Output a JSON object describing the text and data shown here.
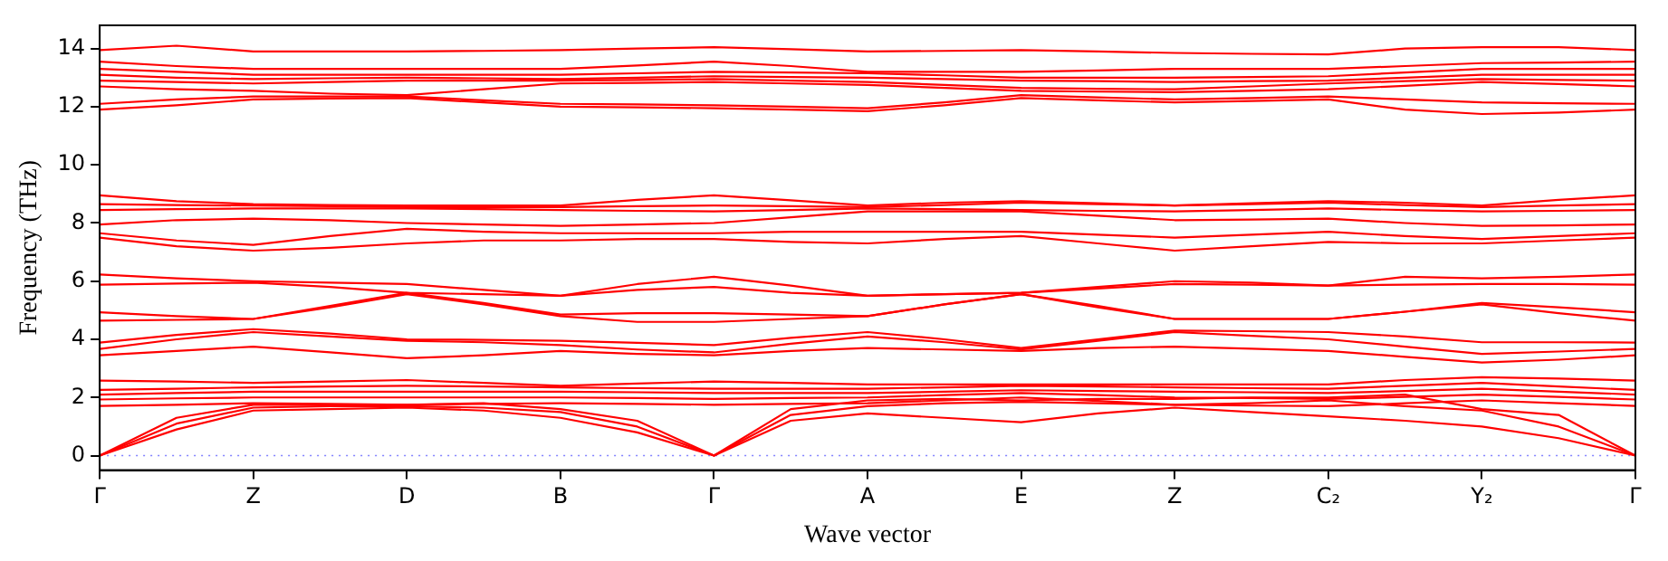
{
  "chart_data": {
    "type": "line",
    "xlabel": "Wave vector",
    "ylabel": "Frequency (THz)",
    "categories": [
      "Γ",
      null,
      "Z",
      null,
      "D",
      null,
      "B",
      null,
      "Γ",
      null,
      "A",
      null,
      "E",
      null,
      "Z",
      null,
      "C₂",
      null,
      "Y₂",
      null,
      "Γ"
    ],
    "ylim": [
      -0.5,
      14.8
    ],
    "yticks": [
      0,
      2,
      4,
      6,
      8,
      10,
      12,
      14
    ],
    "grid": false,
    "legend": false,
    "marker": "none",
    "line_style": "solid",
    "ref_lines": [
      {
        "axis": "y",
        "value": 0,
        "color": "#8080ff",
        "line_style": "dotted"
      }
    ],
    "series": [
      {
        "color": "#ff0000",
        "values": [
          0,
          0.9,
          1.55,
          1.6,
          1.65,
          1.55,
          1.3,
          0.8,
          0,
          1.2,
          1.45,
          1.3,
          1.15,
          1.45,
          1.65,
          1.5,
          1.35,
          1.2,
          1.0,
          0.6,
          0
        ]
      },
      {
        "color": "#ff0000",
        "values": [
          0,
          1.1,
          1.65,
          1.7,
          1.7,
          1.65,
          1.5,
          1.0,
          0,
          1.4,
          1.7,
          1.8,
          1.85,
          1.8,
          1.75,
          1.8,
          1.9,
          1.7,
          1.55,
          1.0,
          0
        ]
      },
      {
        "color": "#ff0000",
        "values": [
          0,
          1.3,
          1.75,
          1.75,
          1.75,
          1.8,
          1.6,
          1.2,
          0,
          1.6,
          1.9,
          1.95,
          1.9,
          1.95,
          1.95,
          2.0,
          2.0,
          2.1,
          1.6,
          1.4,
          0
        ]
      },
      {
        "color": "#ff0000",
        "values": [
          1.71,
          1.75,
          1.8,
          1.78,
          1.75,
          1.78,
          1.8,
          1.78,
          1.75,
          1.78,
          1.8,
          1.9,
          2.0,
          1.88,
          1.75,
          1.72,
          1.7,
          1.8,
          1.9,
          1.8,
          1.71
        ]
      },
      {
        "color": "#ff0000",
        "values": [
          1.93,
          1.97,
          2.0,
          2.0,
          2.0,
          2.0,
          2.0,
          1.98,
          1.95,
          1.98,
          2.0,
          2.08,
          2.15,
          2.08,
          2.0,
          1.98,
          1.95,
          2.02,
          2.1,
          2.02,
          1.93
        ]
      },
      {
        "color": "#ff0000",
        "values": [
          2.1,
          2.15,
          2.2,
          2.2,
          2.2,
          2.2,
          2.2,
          2.18,
          2.15,
          2.15,
          2.15,
          2.2,
          2.25,
          2.22,
          2.2,
          2.18,
          2.15,
          2.22,
          2.3,
          2.2,
          2.1
        ]
      },
      {
        "color": "#ff0000",
        "values": [
          2.26,
          2.3,
          2.35,
          2.38,
          2.4,
          2.38,
          2.35,
          2.32,
          2.3,
          2.3,
          2.3,
          2.35,
          2.4,
          2.38,
          2.35,
          2.32,
          2.3,
          2.4,
          2.5,
          2.38,
          2.26
        ]
      },
      {
        "color": "#ff0000",
        "values": [
          2.58,
          2.55,
          2.5,
          2.55,
          2.6,
          2.5,
          2.4,
          2.48,
          2.55,
          2.5,
          2.45,
          2.45,
          2.45,
          2.45,
          2.45,
          2.45,
          2.45,
          2.6,
          2.7,
          2.65,
          2.58
        ]
      },
      {
        "color": "#ff0000",
        "values": [
          3.45,
          3.6,
          3.75,
          3.55,
          3.35,
          3.45,
          3.6,
          3.5,
          3.45,
          3.6,
          3.7,
          3.65,
          3.6,
          3.7,
          3.75,
          3.68,
          3.6,
          3.4,
          3.2,
          3.3,
          3.45
        ]
      },
      {
        "color": "#ff0000",
        "values": [
          3.67,
          4.0,
          4.25,
          4.1,
          3.95,
          3.9,
          3.8,
          3.65,
          3.55,
          3.85,
          4.1,
          3.9,
          3.65,
          3.95,
          4.25,
          4.12,
          4.0,
          3.75,
          3.5,
          3.58,
          3.67
        ]
      },
      {
        "color": "#ff0000",
        "values": [
          3.89,
          4.15,
          4.35,
          4.2,
          4.0,
          3.98,
          3.95,
          3.88,
          3.8,
          4.05,
          4.25,
          4.0,
          3.7,
          4.0,
          4.3,
          4.28,
          4.25,
          4.1,
          3.9,
          3.9,
          3.89
        ]
      },
      {
        "color": "#ff0000",
        "values": [
          4.64,
          4.67,
          4.7,
          5.1,
          5.55,
          5.2,
          4.8,
          4.6,
          4.6,
          4.7,
          4.8,
          5.2,
          5.55,
          5.1,
          4.7,
          4.7,
          4.7,
          4.95,
          5.2,
          4.9,
          4.64
        ]
      },
      {
        "color": "#ff0000",
        "values": [
          4.93,
          4.8,
          4.7,
          5.15,
          5.6,
          5.25,
          4.85,
          4.9,
          4.9,
          4.85,
          4.8,
          5.2,
          5.55,
          5.15,
          4.7,
          4.7,
          4.7,
          4.95,
          5.25,
          5.1,
          4.93
        ]
      },
      {
        "color": "#ff0000",
        "values": [
          5.88,
          5.92,
          5.95,
          5.8,
          5.6,
          5.55,
          5.5,
          5.7,
          5.8,
          5.6,
          5.5,
          5.55,
          5.6,
          5.75,
          5.9,
          5.88,
          5.85,
          5.88,
          5.9,
          5.9,
          5.88
        ]
      },
      {
        "color": "#ff0000",
        "values": [
          6.23,
          6.1,
          6.0,
          5.95,
          5.9,
          5.7,
          5.5,
          5.9,
          6.15,
          5.85,
          5.5,
          5.55,
          5.6,
          5.8,
          6.0,
          5.95,
          5.85,
          6.15,
          6.1,
          6.15,
          6.23
        ]
      },
      {
        "color": "#ff0000",
        "values": [
          7.5,
          7.2,
          7.05,
          7.15,
          7.3,
          7.4,
          7.4,
          7.45,
          7.45,
          7.35,
          7.3,
          7.45,
          7.55,
          7.3,
          7.05,
          7.2,
          7.35,
          7.3,
          7.3,
          7.4,
          7.5
        ]
      },
      {
        "color": "#ff0000",
        "values": [
          7.65,
          7.4,
          7.25,
          7.55,
          7.8,
          7.7,
          7.65,
          7.65,
          7.65,
          7.7,
          7.7,
          7.7,
          7.7,
          7.6,
          7.5,
          7.6,
          7.7,
          7.55,
          7.45,
          7.55,
          7.65
        ]
      },
      {
        "color": "#ff0000",
        "values": [
          7.95,
          8.1,
          8.15,
          8.1,
          8.0,
          7.95,
          7.9,
          7.95,
          8.0,
          8.2,
          8.4,
          8.4,
          8.4,
          8.25,
          8.1,
          8.12,
          8.15,
          8.0,
          7.9,
          7.92,
          7.95
        ]
      },
      {
        "color": "#ff0000",
        "values": [
          8.45,
          8.48,
          8.5,
          8.5,
          8.5,
          8.48,
          8.45,
          8.42,
          8.4,
          8.45,
          8.5,
          8.48,
          8.45,
          8.42,
          8.4,
          8.45,
          8.5,
          8.45,
          8.4,
          8.42,
          8.45
        ]
      },
      {
        "color": "#ff0000",
        "values": [
          8.65,
          8.62,
          8.6,
          8.58,
          8.55,
          8.55,
          8.55,
          8.58,
          8.6,
          8.58,
          8.55,
          8.62,
          8.7,
          8.65,
          8.6,
          8.65,
          8.7,
          8.62,
          8.55,
          8.6,
          8.65
        ]
      },
      {
        "color": "#ff0000",
        "values": [
          8.95,
          8.75,
          8.65,
          8.62,
          8.6,
          8.6,
          8.6,
          8.8,
          8.95,
          8.78,
          8.6,
          8.7,
          8.75,
          8.68,
          8.6,
          8.68,
          8.75,
          8.7,
          8.6,
          8.8,
          8.95
        ]
      },
      {
        "color": "#ff0000",
        "values": [
          11.9,
          12.05,
          12.25,
          12.28,
          12.3,
          12.15,
          12.0,
          11.98,
          11.95,
          11.9,
          11.85,
          12.05,
          12.3,
          12.22,
          12.15,
          12.2,
          12.25,
          11.9,
          11.75,
          11.8,
          11.9
        ]
      },
      {
        "color": "#ff0000",
        "values": [
          12.1,
          12.25,
          12.35,
          12.35,
          12.35,
          12.22,
          12.1,
          12.08,
          12.05,
          12.0,
          11.95,
          12.15,
          12.4,
          12.32,
          12.25,
          12.3,
          12.35,
          12.25,
          12.15,
          12.12,
          12.1
        ]
      },
      {
        "color": "#ff0000",
        "values": [
          12.7,
          12.6,
          12.55,
          12.45,
          12.4,
          12.6,
          12.8,
          12.82,
          12.85,
          12.8,
          12.75,
          12.65,
          12.55,
          12.52,
          12.5,
          12.55,
          12.6,
          12.72,
          12.85,
          12.78,
          12.7
        ]
      },
      {
        "color": "#ff0000",
        "values": [
          12.9,
          12.85,
          12.8,
          12.85,
          12.9,
          12.9,
          12.9,
          12.92,
          12.95,
          12.9,
          12.85,
          12.75,
          12.65,
          12.62,
          12.6,
          12.7,
          12.8,
          12.88,
          12.95,
          12.92,
          12.9
        ]
      },
      {
        "color": "#ff0000",
        "values": [
          13.1,
          13.0,
          12.95,
          12.98,
          13.0,
          12.98,
          12.95,
          13.0,
          13.05,
          13.02,
          13.0,
          12.95,
          12.9,
          12.88,
          12.85,
          12.88,
          12.9,
          13.0,
          13.1,
          13.1,
          13.1
        ]
      },
      {
        "color": "#ff0000",
        "values": [
          13.3,
          13.2,
          13.1,
          13.1,
          13.1,
          13.1,
          13.1,
          13.15,
          13.2,
          13.18,
          13.15,
          13.08,
          13.0,
          13.0,
          13.0,
          13.02,
          13.05,
          13.18,
          13.3,
          13.3,
          13.3
        ]
      },
      {
        "color": "#ff0000",
        "values": [
          13.55,
          13.4,
          13.3,
          13.3,
          13.3,
          13.3,
          13.3,
          13.42,
          13.55,
          13.4,
          13.2,
          13.2,
          13.2,
          13.25,
          13.3,
          13.3,
          13.3,
          13.4,
          13.5,
          13.52,
          13.55
        ]
      },
      {
        "color": "#ff0000",
        "values": [
          13.95,
          14.1,
          13.9,
          13.9,
          13.9,
          13.92,
          13.95,
          14.0,
          14.05,
          13.98,
          13.9,
          13.92,
          13.95,
          13.9,
          13.85,
          13.82,
          13.8,
          14.0,
          14.05,
          14.05,
          13.95
        ]
      }
    ]
  }
}
